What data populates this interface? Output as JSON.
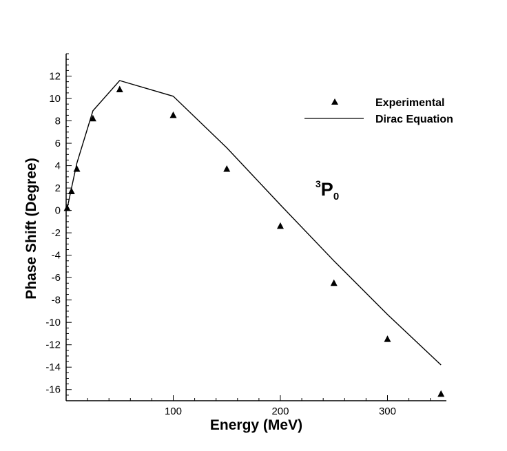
{
  "chart_data": {
    "type": "line",
    "title": "",
    "xlabel": "Energy (MeV)",
    "ylabel": "Phase Shift (Degree)",
    "xlim": [
      0,
      355
    ],
    "ylim": [
      -17,
      14
    ],
    "xticks": [
      100,
      200,
      300
    ],
    "yticks": [
      12,
      10,
      8,
      6,
      4,
      2,
      0,
      -2,
      -4,
      -6,
      -8,
      -10,
      -12,
      -14,
      -16
    ],
    "grid": false,
    "legend_position": "top-right",
    "annotation": {
      "superscript": "3",
      "letter": "P",
      "subscript": "0"
    },
    "series": [
      {
        "name": "Experimental",
        "style": "triangle-marker",
        "x": [
          1,
          5,
          10,
          25,
          50,
          100,
          150,
          200,
          250,
          300,
          350
        ],
        "y": [
          0.2,
          1.7,
          3.7,
          8.2,
          10.8,
          8.5,
          3.7,
          -1.4,
          -6.5,
          -11.5,
          -16.4
        ]
      },
      {
        "name": "Dirac Equation",
        "style": "line",
        "x": [
          1,
          5,
          10,
          25,
          50,
          100,
          150,
          200,
          250,
          300,
          350
        ],
        "y": [
          0.2,
          2.0,
          4.2,
          8.9,
          11.6,
          10.2,
          5.6,
          0.5,
          -4.5,
          -9.3,
          -13.8
        ]
      }
    ]
  }
}
